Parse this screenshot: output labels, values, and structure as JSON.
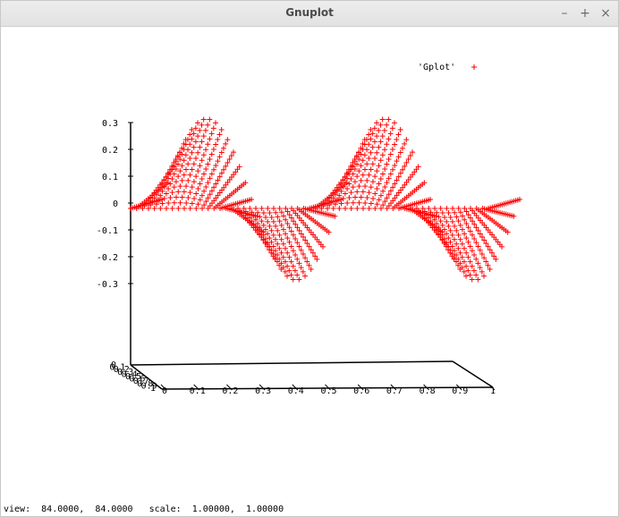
{
  "window": {
    "title": "Gnuplot",
    "controls": {
      "minimize": "–",
      "maximize": "+",
      "close": "×"
    }
  },
  "status": {
    "view_label": "view:",
    "view_values": "84.0000,  84.0000",
    "scale_label": "scale:",
    "scale_values": "1.00000,  1.00000"
  },
  "chart_data": {
    "type": "scatter",
    "series": [
      {
        "name": "'Gplot'",
        "marker": "+",
        "color": "#ff0000"
      }
    ],
    "z_ticks": [
      "0.3",
      "0.2",
      "0.1",
      "0",
      "-0.1",
      "-0.2",
      "-0.3"
    ],
    "z_tick_values": [
      0.3,
      0.2,
      0.1,
      0,
      -0.1,
      -0.2,
      -0.3
    ],
    "x_ticks": [
      "0",
      "0.1",
      "0.2",
      "0.3",
      "0.4",
      "0.5",
      "0.6",
      "0.7",
      "0.8",
      "0.9",
      "1"
    ],
    "x_tick_values": [
      0,
      0.1,
      0.2,
      0.3,
      0.4,
      0.5,
      0.6,
      0.7,
      0.8,
      0.9,
      1
    ],
    "y_ticks": [
      "0",
      "0.1",
      "0.2",
      "0.3",
      "0.4",
      "0.5",
      "0.6",
      "0.7",
      "0.8",
      "0.9",
      "1"
    ],
    "zlim": [
      -0.3,
      0.3
    ],
    "xlim": [
      0,
      1
    ],
    "ylim": [
      0,
      1
    ],
    "surface": {
      "expression": "0.3 * (1 - y) * sin(4*pi*x)",
      "wave_periods_in_x": 2,
      "max_amplitude": 0.3
    },
    "legend_position": "top-right",
    "grid": false
  }
}
